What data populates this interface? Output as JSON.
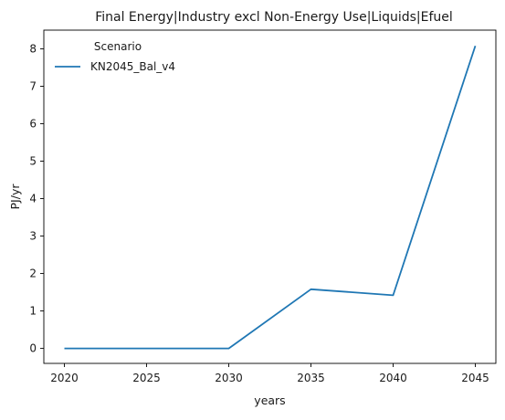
{
  "chart_data": {
    "type": "line",
    "title": "Final Energy|Industry excl Non-Energy Use|Liquids|Efuel",
    "xlabel": "years",
    "ylabel": "PJ/yr",
    "x": [
      2020,
      2025,
      2030,
      2035,
      2040,
      2045
    ],
    "x_ticks": [
      2020,
      2025,
      2030,
      2035,
      2040,
      2045
    ],
    "y_ticks": [
      0,
      1,
      2,
      3,
      4,
      5,
      6,
      7,
      8
    ],
    "xlim": [
      2018.75,
      2046.25
    ],
    "ylim": [
      -0.4,
      8.5
    ],
    "grid": false,
    "legend": {
      "title": "Scenario",
      "placement": "top-left"
    },
    "series": [
      {
        "name": "KN2045_Bal_v4",
        "color": "#1f77b4",
        "values": [
          0,
          0,
          0,
          1.58,
          1.42,
          8.08
        ]
      }
    ]
  }
}
